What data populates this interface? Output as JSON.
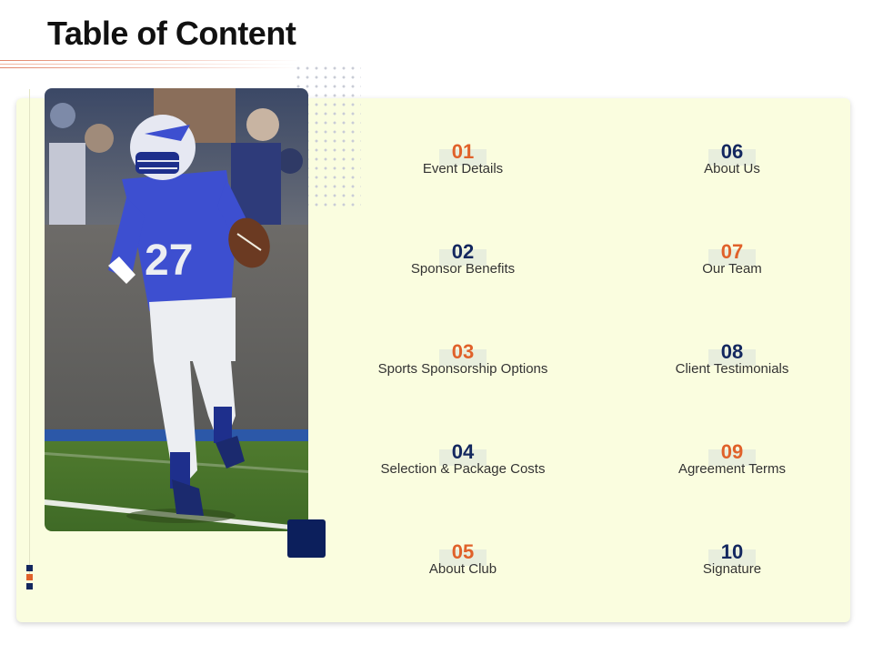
{
  "slide": {
    "title": "Table of Content"
  },
  "colors": {
    "accent_orange": "#e0612a",
    "accent_navy": "#13275f",
    "panel_background": "#fafddf",
    "number_highlight": "#e8eedd"
  },
  "photo": {
    "icon": "football-player-image"
  },
  "toc": {
    "items": [
      {
        "number": "01",
        "label": "Event Details",
        "color": "orange"
      },
      {
        "number": "02",
        "label": "Sponsor Benefits",
        "color": "navy"
      },
      {
        "number": "03",
        "label": "Sports Sponsorship Options",
        "color": "orange"
      },
      {
        "number": "04",
        "label": "Selection & Package Costs",
        "color": "navy"
      },
      {
        "number": "05",
        "label": "About Club",
        "color": "orange"
      },
      {
        "number": "06",
        "label": "About Us",
        "color": "navy"
      },
      {
        "number": "07",
        "label": "Our Team",
        "color": "orange"
      },
      {
        "number": "08",
        "label": "Client Testimonials",
        "color": "navy"
      },
      {
        "number": "09",
        "label": "Agreement Terms",
        "color": "orange"
      },
      {
        "number": "10",
        "label": "Signature",
        "color": "navy"
      }
    ]
  }
}
